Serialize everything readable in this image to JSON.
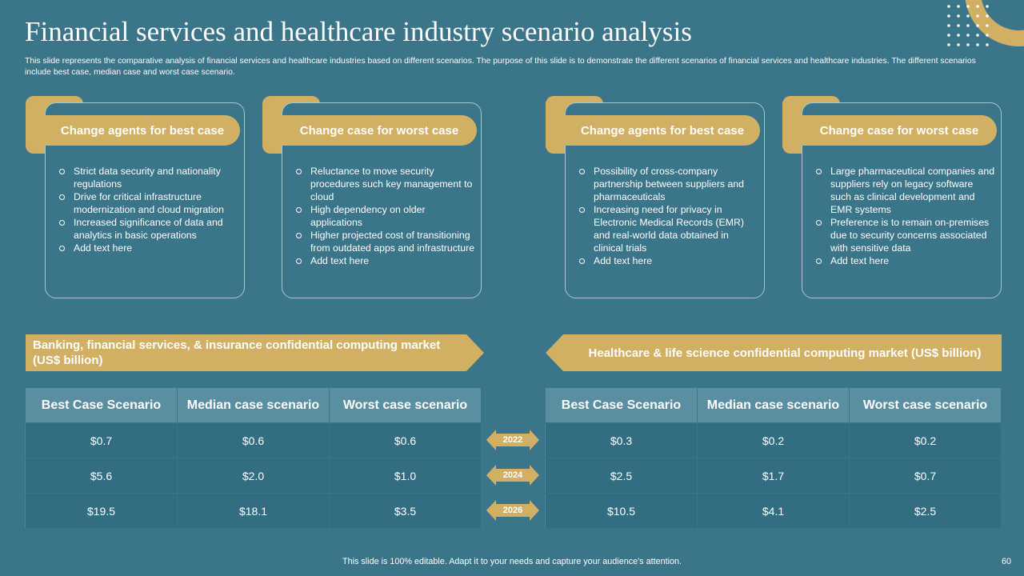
{
  "slide": {
    "title": "Financial services and healthcare industry scenario analysis",
    "subtitle": "This slide represents the comparative analysis of financial services and healthcare industries based on different scenarios. The purpose of this slide is to demonstrate the different scenarios of financial services and healthcare industries. The different scenarios include best case, median case and worst case scenario.",
    "footer": "This slide is 100% editable. Adapt it to your needs and capture your audience's attention.",
    "page_number": "60"
  },
  "colors": {
    "background": "#3b7589",
    "accent_gold": "#d1b064",
    "table_header": "#5a8fa2",
    "table_cell": "#336d81"
  },
  "cards": [
    {
      "title": "Change agents for best case",
      "items": [
        "Strict data security and nationality regulations",
        "Drive  for critical infrastructure modernization and cloud migration",
        "Increased significance of data and analytics in basic operations",
        "Add text here"
      ]
    },
    {
      "title": "Change case for worst case",
      "items": [
        "Reluctance to move security procedures  such key management to cloud",
        "High dependency on older applications",
        "Higher projected cost of transitioning from outdated apps and infrastructure",
        "Add text here"
      ]
    },
    {
      "title": "Change agents for best case",
      "items": [
        "Possibility of cross-company partnership between suppliers and pharmaceuticals",
        "Increasing need for privacy in Electronic Medical Records (EMR) and real-world  data obtained in clinical trials",
        "Add text here"
      ]
    },
    {
      "title": "Change case for worst case",
      "items": [
        "Large pharmaceutical companies and suppliers rely on legacy software  such as clinical development  and EMR systems",
        "Preference is to remain on-premises due to security concerns associated with sensitive data",
        "Add text here"
      ]
    }
  ],
  "banners": {
    "left": "Banking, financial services, & insurance confidential computing market (US$ billion)",
    "right": "Healthcare & life science confidential computing market (US$ billion)"
  },
  "tables": {
    "left": {
      "headers": [
        "Best Case Scenario",
        "Median case scenario",
        "Worst case scenario"
      ],
      "rows": [
        [
          "$0.7",
          "$0.6",
          "$0.6"
        ],
        [
          "$5.6",
          "$2.0",
          "$1.0"
        ],
        [
          "$19.5",
          "$18.1",
          "$3.5"
        ]
      ]
    },
    "right": {
      "headers": [
        "Best Case Scenario",
        "Median case scenario",
        "Worst case scenario"
      ],
      "rows": [
        [
          "$0.3",
          "$0.2",
          "$0.2"
        ],
        [
          "$2.5",
          "$1.7",
          "$0.7"
        ],
        [
          "$10.5",
          "$4.1",
          "$2.5"
        ]
      ]
    }
  },
  "years": [
    "2022",
    "2024",
    "2026"
  ]
}
